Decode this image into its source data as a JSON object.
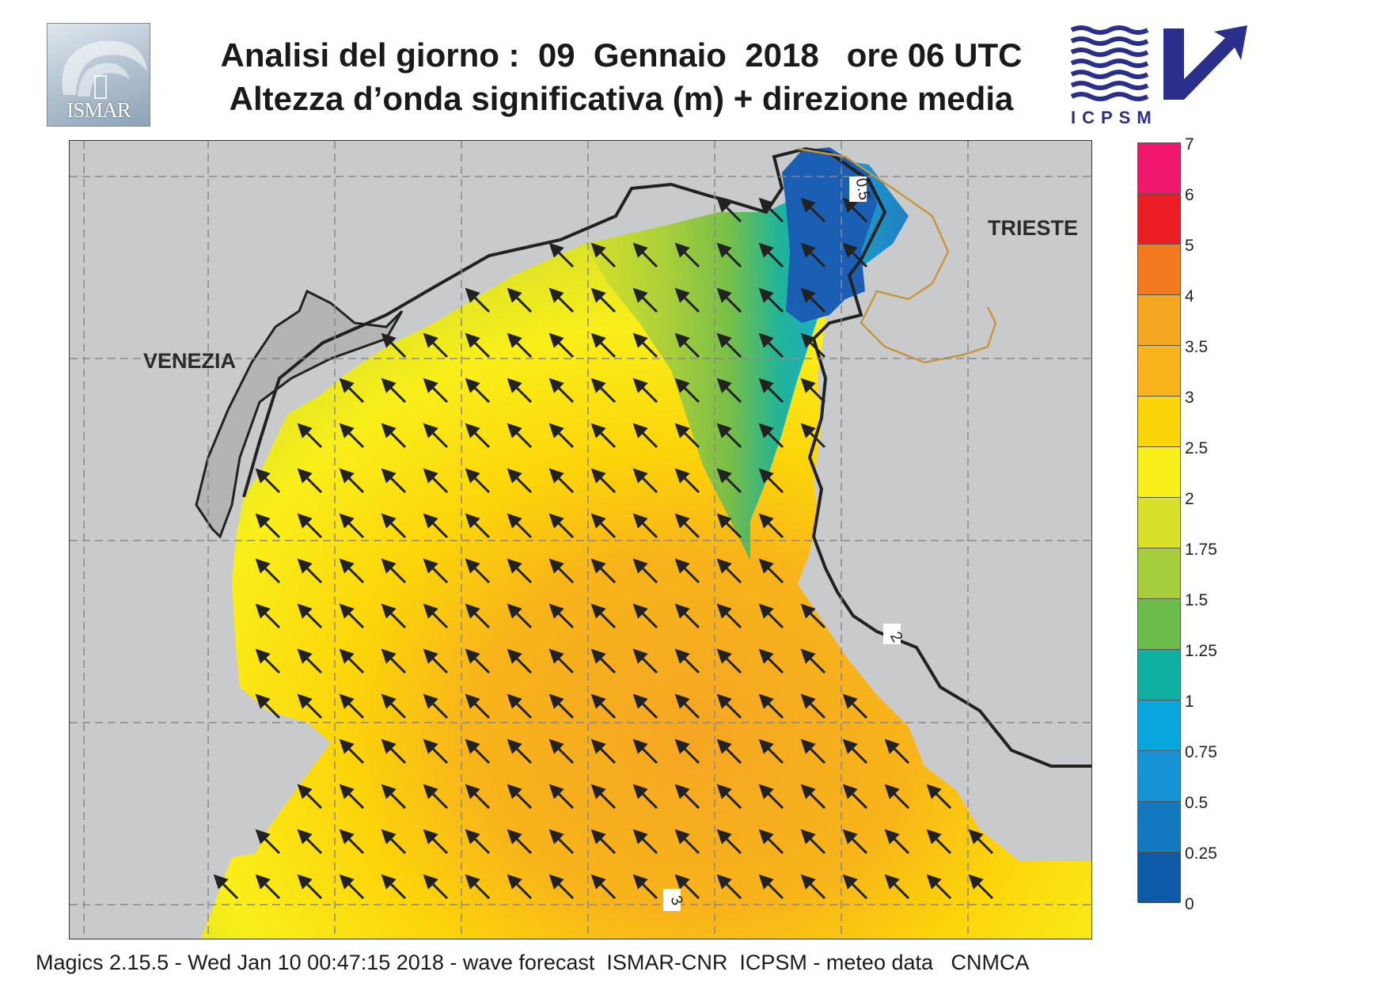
{
  "header": {
    "title_line1": "Analisi del giorno :  09  Gennaio  2018   ore 06 UTC",
    "title_line2": "Altezza d’onda significativa (m) + direzione media"
  },
  "logos": {
    "left": {
      "text": "ISMAR",
      "icon": "ismar-logo"
    },
    "right": {
      "text": "ICPSM",
      "icon": "icpsm-logo"
    }
  },
  "map": {
    "cities": [
      {
        "id": "venezia",
        "label": "VENEZIA"
      },
      {
        "id": "trieste",
        "label": "TRIESTE"
      }
    ],
    "contour_labels": [
      "0.5",
      "2",
      "3"
    ],
    "colors": {
      "land": "#c9cacc",
      "sea_low": "#1a5fb4",
      "sea_high": "#f5a623",
      "coast": "#222222",
      "border": "#c8963c"
    }
  },
  "legend": {
    "title": "",
    "levels": [
      "7",
      "6",
      "5",
      "4",
      "3.5",
      "3",
      "2.5",
      "2",
      "1.75",
      "1.5",
      "1.25",
      "1",
      "0.75",
      "0.5",
      "0.25",
      "0"
    ],
    "colors": [
      "#f2176e",
      "#ec1c24",
      "#f47a20",
      "#f5a623",
      "#f8b41a",
      "#fcd40a",
      "#f9ef1a",
      "#d8e02a",
      "#a6cd3c",
      "#6cbc4c",
      "#0fb0a2",
      "#08a6df",
      "#1794d5",
      "#1478c0",
      "#0f5aa8"
    ]
  },
  "footer": {
    "text": "Magics 2.15.5 - Wed Jan 10 00:47:15 2018 - wave forecast  ISMAR-CNR  ICPSM - meteo data   CNMCA"
  }
}
